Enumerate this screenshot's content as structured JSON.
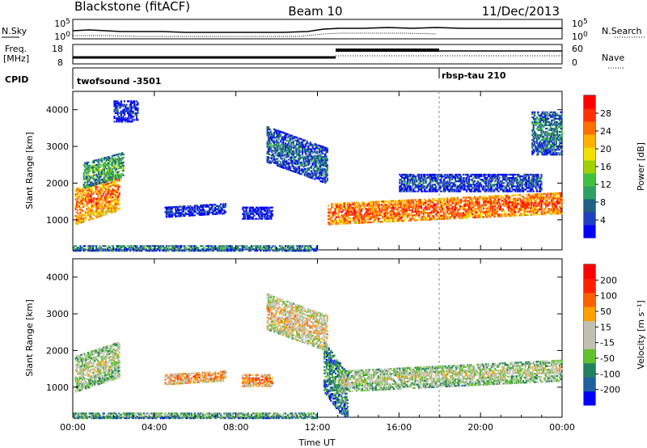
{
  "header": {
    "radar": "Blackstone (fitACF)",
    "beam": "Beam 10",
    "date": "11/Dec/2013"
  },
  "strip": {
    "nsky_label": "N.Sky",
    "nsearch_label": "N.Search",
    "freq_label_1": "Freq.",
    "freq_label_2": "[MHz]",
    "nave_label": "Nave",
    "cpid_label": "CPID",
    "noise_ticks_left": [
      "10^5",
      "10^0"
    ],
    "noise_ticks_right": [
      "10^5",
      "10^0"
    ],
    "freq_ticks": [
      "18",
      "8"
    ],
    "nave_ticks": [
      "60",
      "0"
    ],
    "cpid_segments": [
      {
        "name": "twofsound -3501",
        "start_hour": 0,
        "end_hour": 18
      },
      {
        "name": "rbsp-tau 210",
        "start_hour": 18,
        "end_hour": 24
      }
    ]
  },
  "chart_data": [
    {
      "type": "heatmap",
      "panel": "power",
      "xlabel": "",
      "ylabel": "Slant Range [km]",
      "x_ticks": [
        "00:00",
        "04:00",
        "08:00",
        "12:00",
        "16:00",
        "20:00",
        "00:00"
      ],
      "xlim_hours": [
        0,
        24
      ],
      "ylim": [
        180,
        4500
      ],
      "y_ticks": [
        1000,
        2000,
        3000,
        4000
      ],
      "colorbar_label": "Power [dB]",
      "colorbar_ticks": [
        "28",
        "24",
        "20",
        "16",
        "12",
        "8",
        "4"
      ],
      "colors": [
        "#0000ff",
        "#2040c0",
        "#206080",
        "#30a060",
        "#40c040",
        "#a0d000",
        "#f0e000",
        "#ffb000",
        "#ff7000",
        "#ff3000",
        "#ff0000"
      ],
      "regions": [
        {
          "t0": 0.1,
          "t1": 2.3,
          "r0": 900,
          "r1": 1900,
          "slope": 400,
          "level": 0.8
        },
        {
          "t0": 0.5,
          "t1": 2.5,
          "r0": 1900,
          "r1": 2600,
          "slope": 300,
          "level": 0.4
        },
        {
          "t0": 2.0,
          "t1": 3.2,
          "r0": 3700,
          "r1": 4300,
          "slope": 0,
          "level": 0.1
        },
        {
          "t0": 4.5,
          "t1": 7.5,
          "r0": 1100,
          "r1": 1400,
          "slope": 100,
          "level": 0.15
        },
        {
          "t0": 8.3,
          "t1": 9.8,
          "r0": 1050,
          "r1": 1400,
          "slope": 0,
          "level": 0.1
        },
        {
          "t0": 9.5,
          "t1": 12.5,
          "r0": 2600,
          "r1": 3600,
          "slope": -600,
          "level": 0.25
        },
        {
          "t0": 12.5,
          "t1": 24.0,
          "r0": 900,
          "r1": 1500,
          "slope": 300,
          "level": 0.85
        },
        {
          "t0": 16.0,
          "t1": 23.0,
          "r0": 1800,
          "r1": 2300,
          "slope": 0,
          "level": 0.2
        },
        {
          "t0": 0.0,
          "t1": 12.0,
          "r0": 180,
          "r1": 350,
          "slope": 0,
          "level": 0.3
        },
        {
          "t0": 22.5,
          "t1": 24.0,
          "r0": 2800,
          "r1": 4000,
          "slope": 0,
          "level": 0.3
        }
      ]
    },
    {
      "type": "heatmap",
      "panel": "velocity",
      "xlabel": "Time UT",
      "ylabel": "Slant Range [km]",
      "x_ticks": [
        "00:00",
        "04:00",
        "08:00",
        "12:00",
        "16:00",
        "20:00",
        "00:00"
      ],
      "xlim_hours": [
        0,
        24
      ],
      "ylim": [
        180,
        4500
      ],
      "y_ticks": [
        1000,
        2000,
        3000,
        4000
      ],
      "colorbar_label": "Velocity [m s⁻¹]",
      "colorbar_ticks": [
        "200",
        "100",
        "50",
        "15",
        "-15",
        "-50",
        "-100",
        "-200"
      ],
      "colors": [
        "#0000ff",
        "#2060a0",
        "#208060",
        "#60c030",
        "#c0c0b0",
        "#c0c0b0",
        "#ffa000",
        "#ff6000",
        "#ff2000",
        "#ff0000"
      ],
      "regions": [
        {
          "t0": 0.1,
          "t1": 2.3,
          "r0": 900,
          "r1": 1900,
          "slope": 400,
          "level": 0.5
        },
        {
          "t0": 4.5,
          "t1": 7.5,
          "r0": 1100,
          "r1": 1400,
          "slope": 100,
          "level": 0.7
        },
        {
          "t0": 8.3,
          "t1": 9.8,
          "r0": 1050,
          "r1": 1400,
          "slope": 0,
          "level": 0.75
        },
        {
          "t0": 12.3,
          "t1": 13.5,
          "r0": 900,
          "r1": 2300,
          "slope": -900,
          "level": 0.3
        },
        {
          "t0": 13.0,
          "t1": 24.0,
          "r0": 900,
          "r1": 1500,
          "slope": 300,
          "level": 0.5
        },
        {
          "t0": 0.0,
          "t1": 12.0,
          "r0": 180,
          "r1": 350,
          "slope": 0,
          "level": 0.35
        },
        {
          "t0": 9.5,
          "t1": 12.5,
          "r0": 2600,
          "r1": 3600,
          "slope": -600,
          "level": 0.6
        }
      ]
    }
  ]
}
